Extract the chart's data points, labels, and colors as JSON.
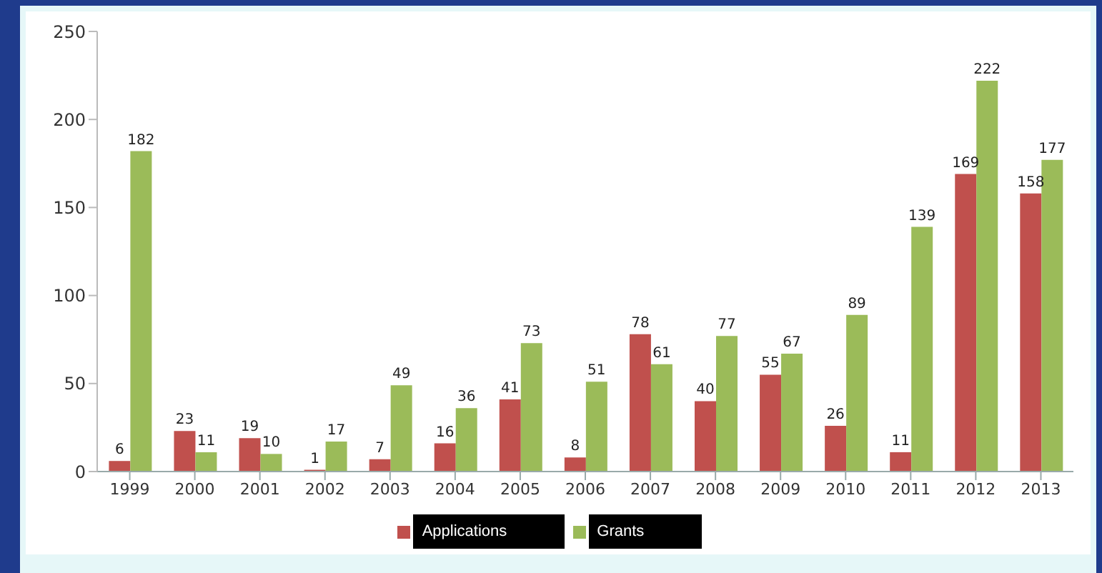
{
  "chart_data": {
    "type": "bar",
    "categories": [
      "1999",
      "2000",
      "2001",
      "2002",
      "2003",
      "2004",
      "2005",
      "2006",
      "2007",
      "2008",
      "2009",
      "2010",
      "2011",
      "2012",
      "2013"
    ],
    "series": [
      {
        "name": "Applications",
        "color": "#c0504d",
        "values": [
          6,
          23,
          19,
          1,
          7,
          16,
          41,
          8,
          78,
          40,
          55,
          26,
          11,
          169,
          158
        ]
      },
      {
        "name": "Grants",
        "color": "#9bbb59",
        "values": [
          182,
          11,
          10,
          17,
          49,
          36,
          73,
          51,
          61,
          77,
          67,
          89,
          139,
          222,
          177
        ]
      }
    ],
    "ylim": [
      0,
      250
    ],
    "yticks": [
      0,
      50,
      100,
      150,
      200,
      250
    ],
    "data_labels": true,
    "legend": "bottom",
    "grid": false
  }
}
